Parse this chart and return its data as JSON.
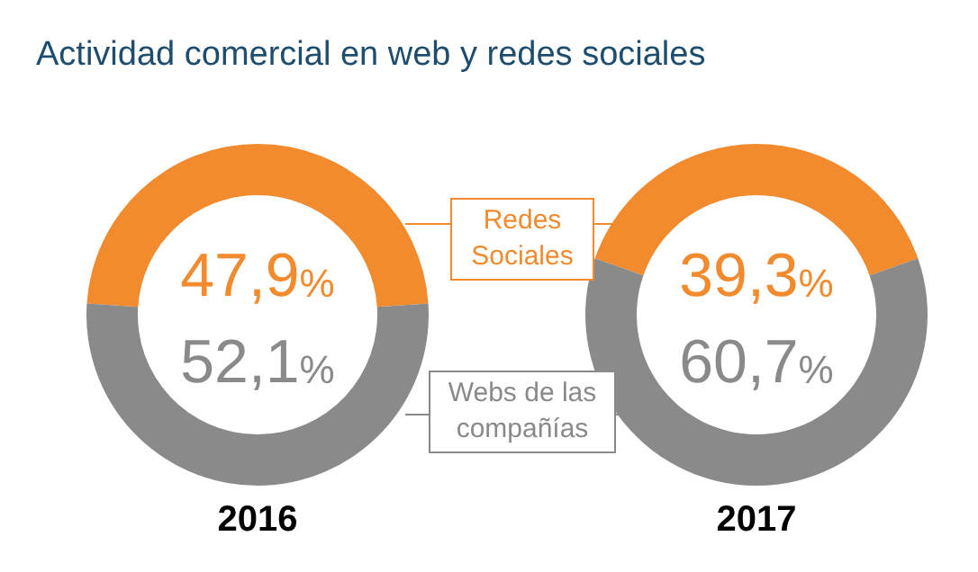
{
  "chart_data": [
    {
      "type": "donut",
      "title": "Actividad comercial en web y redes sociales",
      "xlabel": "2016",
      "categories": [
        "Redes Sociales",
        "Webs de las compañías"
      ],
      "values": [
        47.9,
        52.1
      ],
      "colors": [
        "#f28a2e",
        "#8a8a8a"
      ],
      "value_labels": [
        "47,9%",
        "52,1%"
      ]
    },
    {
      "type": "donut",
      "xlabel": "2017",
      "categories": [
        null,
        null
      ],
      "values": [
        39.3,
        60.7
      ],
      "colors": [
        "#f28a2e",
        "#8a8a8a"
      ],
      "value_labels": [
        "39,3%",
        "60,7%"
      ]
    }
  ]
}
